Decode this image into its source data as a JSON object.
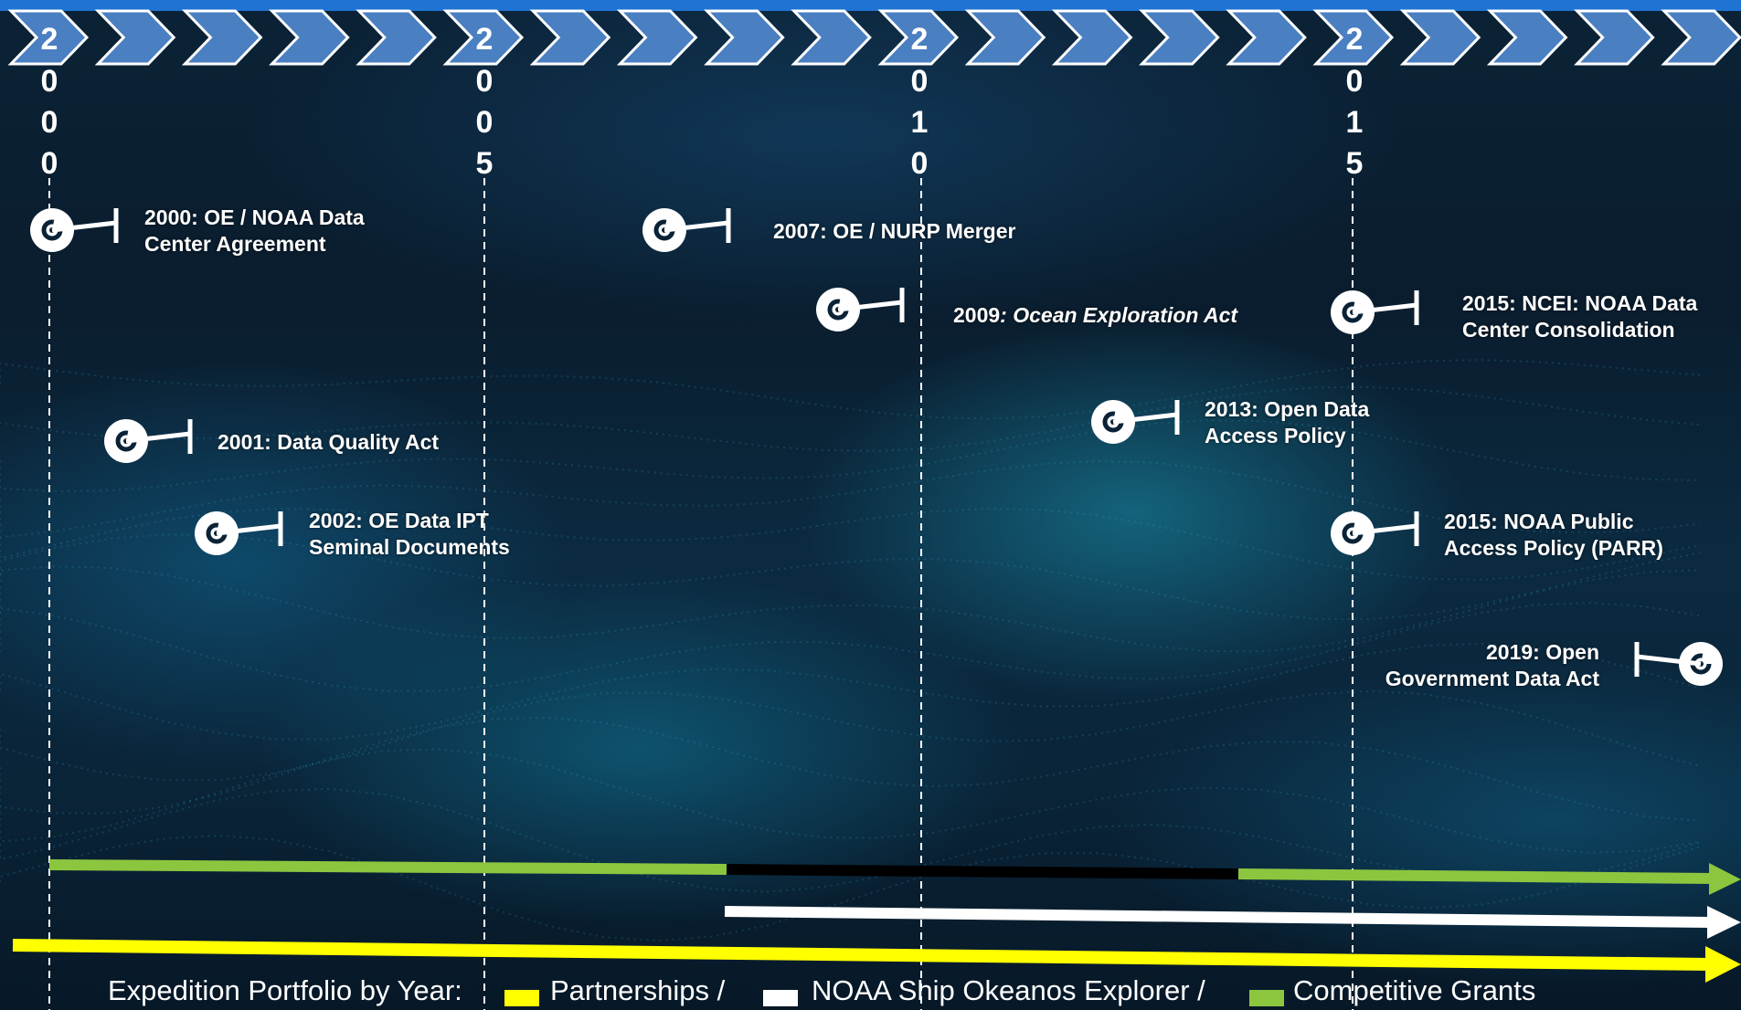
{
  "colors": {
    "chevron": "#4a7fc1",
    "chevron_stroke": "#ffffff",
    "green": "#8cc63f",
    "black": "#000000",
    "white": "#ffffff",
    "yellow": "#ffff00"
  },
  "years": [
    {
      "label": "2000",
      "digits": [
        "2",
        "0",
        "0",
        "0"
      ]
    },
    {
      "label": "2005",
      "digits": [
        "2",
        "0",
        "0",
        "5"
      ]
    },
    {
      "label": "2010",
      "digits": [
        "2",
        "0",
        "1",
        "0"
      ]
    },
    {
      "label": "2015",
      "digits": [
        "2",
        "0",
        "1",
        "5"
      ]
    }
  ],
  "events": [
    {
      "lines": [
        "2000: OE / NOAA Data",
        "Center Agreement"
      ]
    },
    {
      "lines": [
        "2001: Data Quality Act"
      ]
    },
    {
      "lines": [
        "2002: OE Data IPT",
        "Seminal Documents"
      ]
    },
    {
      "lines": [
        "2007: OE / NURP Merger"
      ]
    },
    {
      "prefix": "2009",
      "italic": ": Ocean Exploration Act"
    },
    {
      "lines": [
        "2013: Open Data",
        "Access Policy"
      ]
    },
    {
      "lines": [
        "2015: NCEI: NOAA Data",
        "Center Consolidation"
      ]
    },
    {
      "lines": [
        "2015: NOAA Public",
        "Access Policy (PARR)"
      ]
    },
    {
      "lines": [
        "2019: Open",
        "Government Data Act"
      ]
    }
  ],
  "legend": {
    "title": "Expedition Portfolio by Year:",
    "items": [
      {
        "label": "Partnerships /",
        "color": "#ffff00"
      },
      {
        "label": "NOAA Ship Okeanos Explorer /",
        "color": "#ffffff"
      },
      {
        "label": "Competitive Grants",
        "color": "#8cc63f"
      }
    ]
  }
}
